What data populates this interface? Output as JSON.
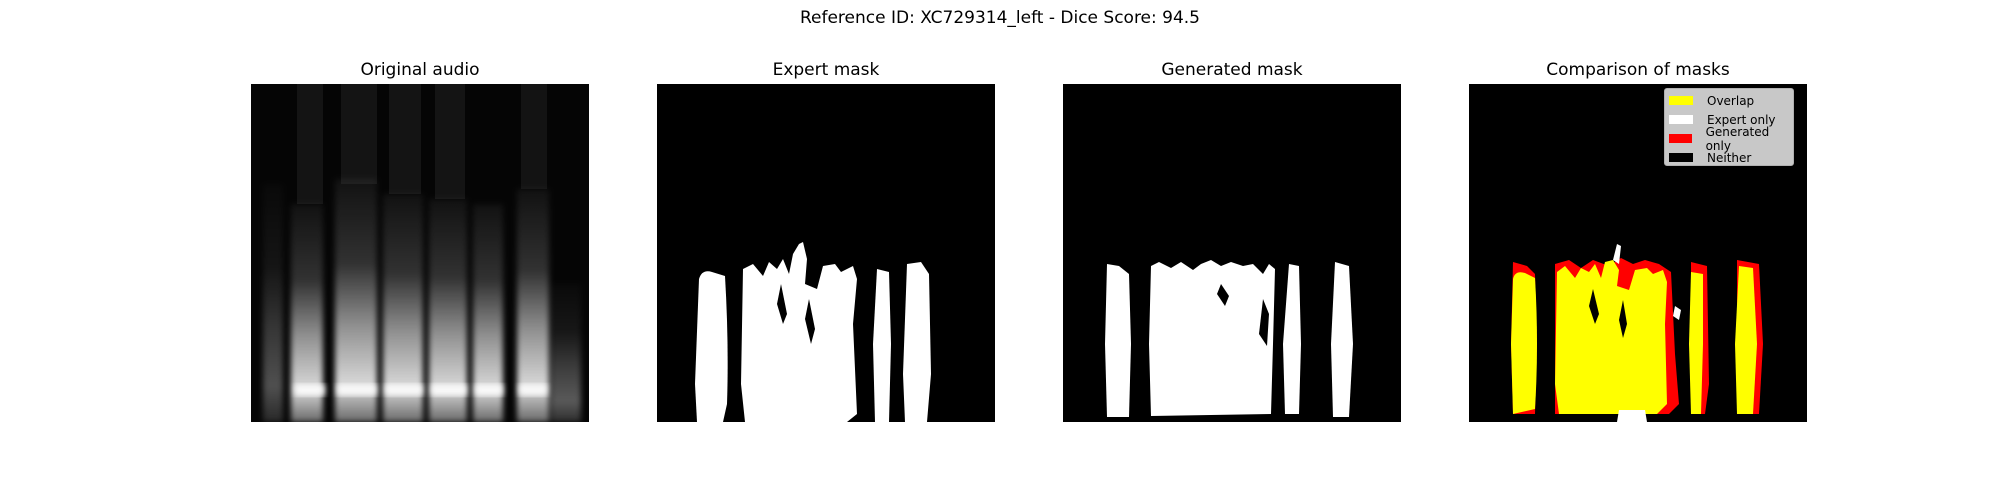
{
  "figure": {
    "suptitle": "Reference ID: XC729314_left - Dice Score: 94.5"
  },
  "panels": [
    {
      "title": "Original audio"
    },
    {
      "title": "Expert mask"
    },
    {
      "title": "Generated mask"
    },
    {
      "title": "Comparison of masks"
    }
  ],
  "legend": {
    "items": [
      {
        "label": "Overlap",
        "color": "#ffff00"
      },
      {
        "label": "Expert only",
        "color": "#ffffff"
      },
      {
        "label": "Generated only",
        "color": "#ff0000"
      },
      {
        "label": "Neither",
        "color": "#000000"
      }
    ]
  },
  "colors": {
    "background": "#000000",
    "mask": "#ffffff",
    "overlap": "#ffff00",
    "generated_only": "#ff0000"
  }
}
